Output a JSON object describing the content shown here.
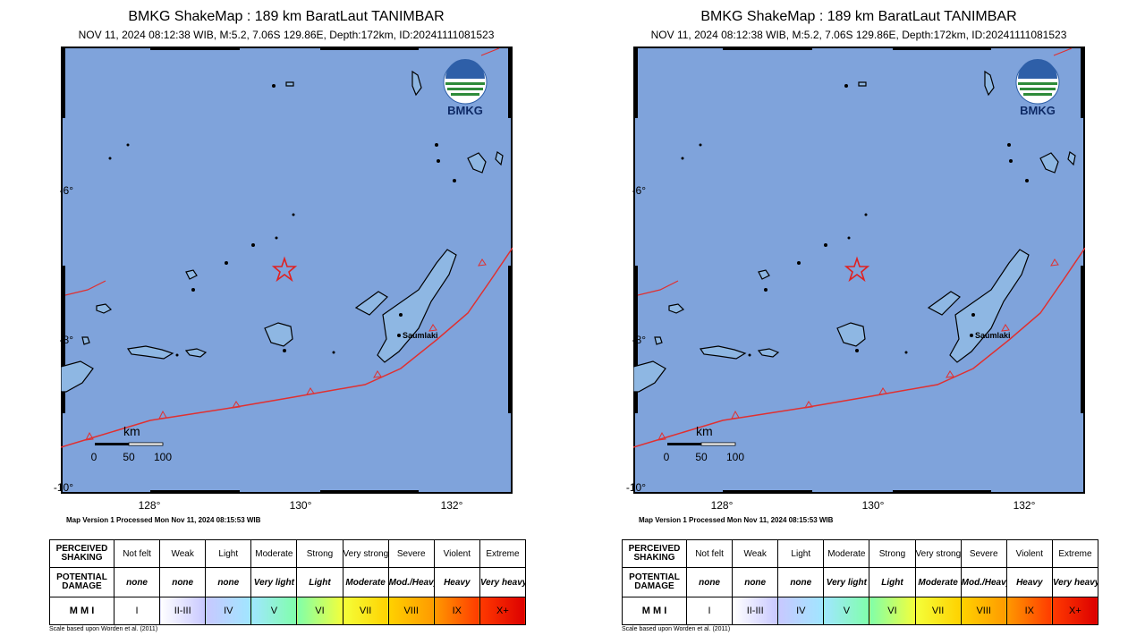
{
  "header": {
    "title": "BMKG ShakeMap : 189 km BaratLaut TANIMBAR",
    "subtitle": "NOV 11, 2024 08:12:38 WIB, M:5.2, 7.06S 129.86E, Depth:172km, ID:20241111081523"
  },
  "map": {
    "logo_text": "BMKG",
    "city_label": "Saumlaki",
    "scale": {
      "unit": "km",
      "labels": [
        "0",
        "50",
        "100"
      ]
    },
    "lat_ticks": [
      "-6°",
      "-8°",
      "-10°"
    ],
    "lon_ticks": [
      "128°",
      "130°",
      "132°"
    ],
    "epicenter": {
      "lat": -7.06,
      "lon": 129.86
    },
    "colors": {
      "sea": "#7fa3db",
      "epicenter": "#e02020",
      "trench": "#e03030"
    }
  },
  "version_text": "Map Version 1 Processed Mon Nov 11, 2024 08:15:53 WIB",
  "mmi_table": {
    "row_labels": {
      "shaking": [
        "PERCEIVED",
        "SHAKING"
      ],
      "damage": [
        "POTENTIAL",
        "DAMAGE"
      ],
      "mmi": "M M I"
    },
    "shaking": [
      "Not felt",
      "Weak",
      "Light",
      "Moderate",
      "Strong",
      "Very strong",
      "Severe",
      "Violent",
      "Extreme"
    ],
    "damage": [
      "none",
      "none",
      "none",
      "Very light",
      "Light",
      "Moderate",
      "Mod./Heavy",
      "Heavy",
      "Very heavy"
    ],
    "mmi": [
      "I",
      "II-III",
      "IV",
      "V",
      "VI",
      "VII",
      "VIII",
      "IX",
      "X+"
    ],
    "colors": [
      "#ffffff",
      "#c8c8ff",
      "#a0e6ff",
      "#80ffaa",
      "#f4ff3a",
      "#ffd200",
      "#ff9a00",
      "#ff3a00",
      "#dd0000"
    ]
  },
  "note": "Scale based upon Worden et al. (2011)"
}
